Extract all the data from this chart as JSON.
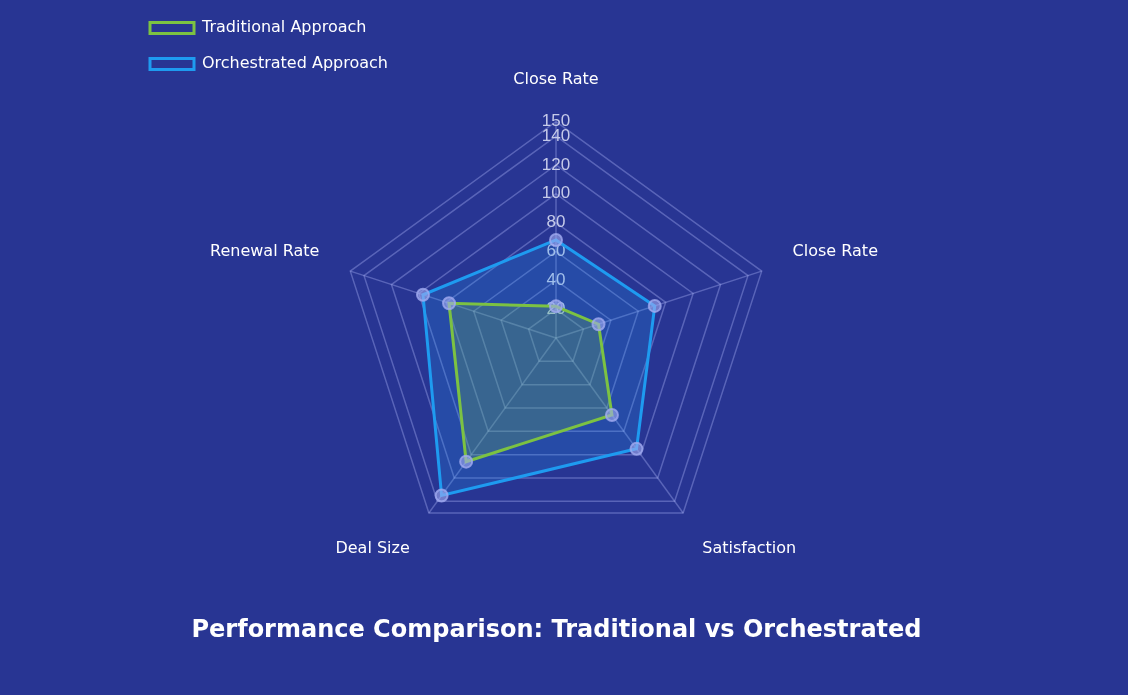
{
  "chart_data": {
    "type": "radar",
    "title": "Performance Comparison: Traditional vs Orchestrated",
    "categories": [
      "Close Rate",
      "Close Rate",
      "Satisfaction",
      "Deal Size",
      "Renewal Rate"
    ],
    "series": [
      {
        "name": "Traditional Approach",
        "color": "#7cc242",
        "values": [
          22,
          31,
          66,
          106,
          78
        ]
      },
      {
        "name": "Orchestrated Approach",
        "color": "#1e9bf0",
        "values": [
          68,
          72,
          95,
          135,
          97
        ]
      }
    ],
    "ylim": [
      0,
      150
    ],
    "yticks": [
      20,
      40,
      60,
      80,
      100,
      120,
      140,
      150
    ],
    "grid": true,
    "legend": "top left",
    "marker": "circle"
  }
}
